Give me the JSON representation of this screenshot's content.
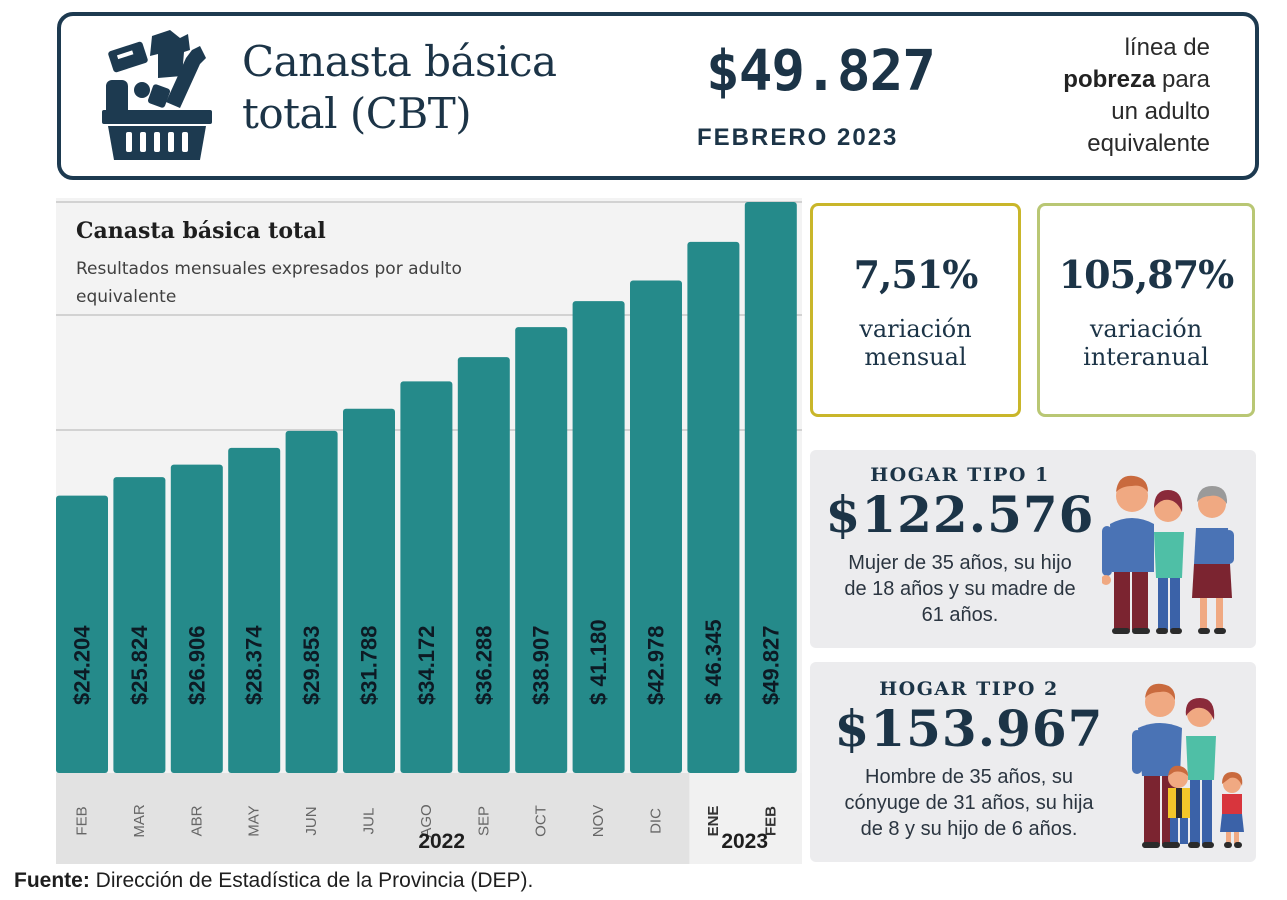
{
  "header": {
    "title_line1": "Canasta básica",
    "title_line2": "total (CBT)",
    "amount": "$49.827",
    "date": "FEBRERO 2023",
    "desc_line1": "línea de",
    "desc_bold": "pobreza",
    "desc_line2_rest": " para",
    "desc_line3": "un adulto",
    "desc_line4": "equivalente",
    "icon": "basket-icon"
  },
  "colors": {
    "navy": "#1c3447",
    "bar": "#258a8a",
    "card_mensual_border": "#c9b62a",
    "card_interanual_border": "#b9c774",
    "panel_gray": "#ececee"
  },
  "stats": {
    "mensual": {
      "value": "7,51%",
      "label_line1": "variación",
      "label_line2": "mensual"
    },
    "interanual": {
      "value": "105,87%",
      "label_line1": "variación",
      "label_line2": "interanual"
    }
  },
  "hogares": [
    {
      "title": "HOGAR TIPO 1",
      "amount": "$122.576",
      "desc_lines": [
        "Mujer de 35 años, su hijo",
        "de 18 años y su madre de",
        "61 años."
      ],
      "icon": "family-three-adults-icon"
    },
    {
      "title": "HOGAR TIPO 2",
      "amount": "$153.967",
      "desc_lines": [
        "Hombre de 35 años, su",
        "cónyuge de 31 años, su hija",
        "de 8 y su hijo de 6 años."
      ],
      "icon": "family-with-children-icon"
    }
  ],
  "source": {
    "label": "Fuente:",
    "text": " Dirección de Estadística de la Provincia (DEP)."
  },
  "chart_data": {
    "type": "bar",
    "title": "Canasta básica total",
    "subtitle": "Resultados mensuales expresados por adulto equivalente",
    "xlabel": "",
    "ylabel": "",
    "ylim": [
      0,
      49827
    ],
    "grid": true,
    "categories": [
      "FEB",
      "MAR",
      "ABR",
      "MAY",
      "JUN",
      "JUL",
      "AGO",
      "SEP",
      "OCT",
      "NOV",
      "DIC",
      "ENE",
      "FEB"
    ],
    "values": [
      24204,
      25824,
      26906,
      28374,
      29853,
      31788,
      34172,
      36288,
      38907,
      41180,
      42978,
      46345,
      49827
    ],
    "labels": [
      "$24.204",
      "$25.824",
      "$26.906",
      "$28.374",
      "$29.853",
      "$31.788",
      "$34.172",
      "$36.288",
      "$38.907",
      "$ 41.180",
      "$42.978",
      "$ 46.345",
      "$49.827"
    ],
    "year_groups": [
      {
        "label": "2022",
        "count": 11
      },
      {
        "label": "2023",
        "count": 2
      }
    ]
  }
}
